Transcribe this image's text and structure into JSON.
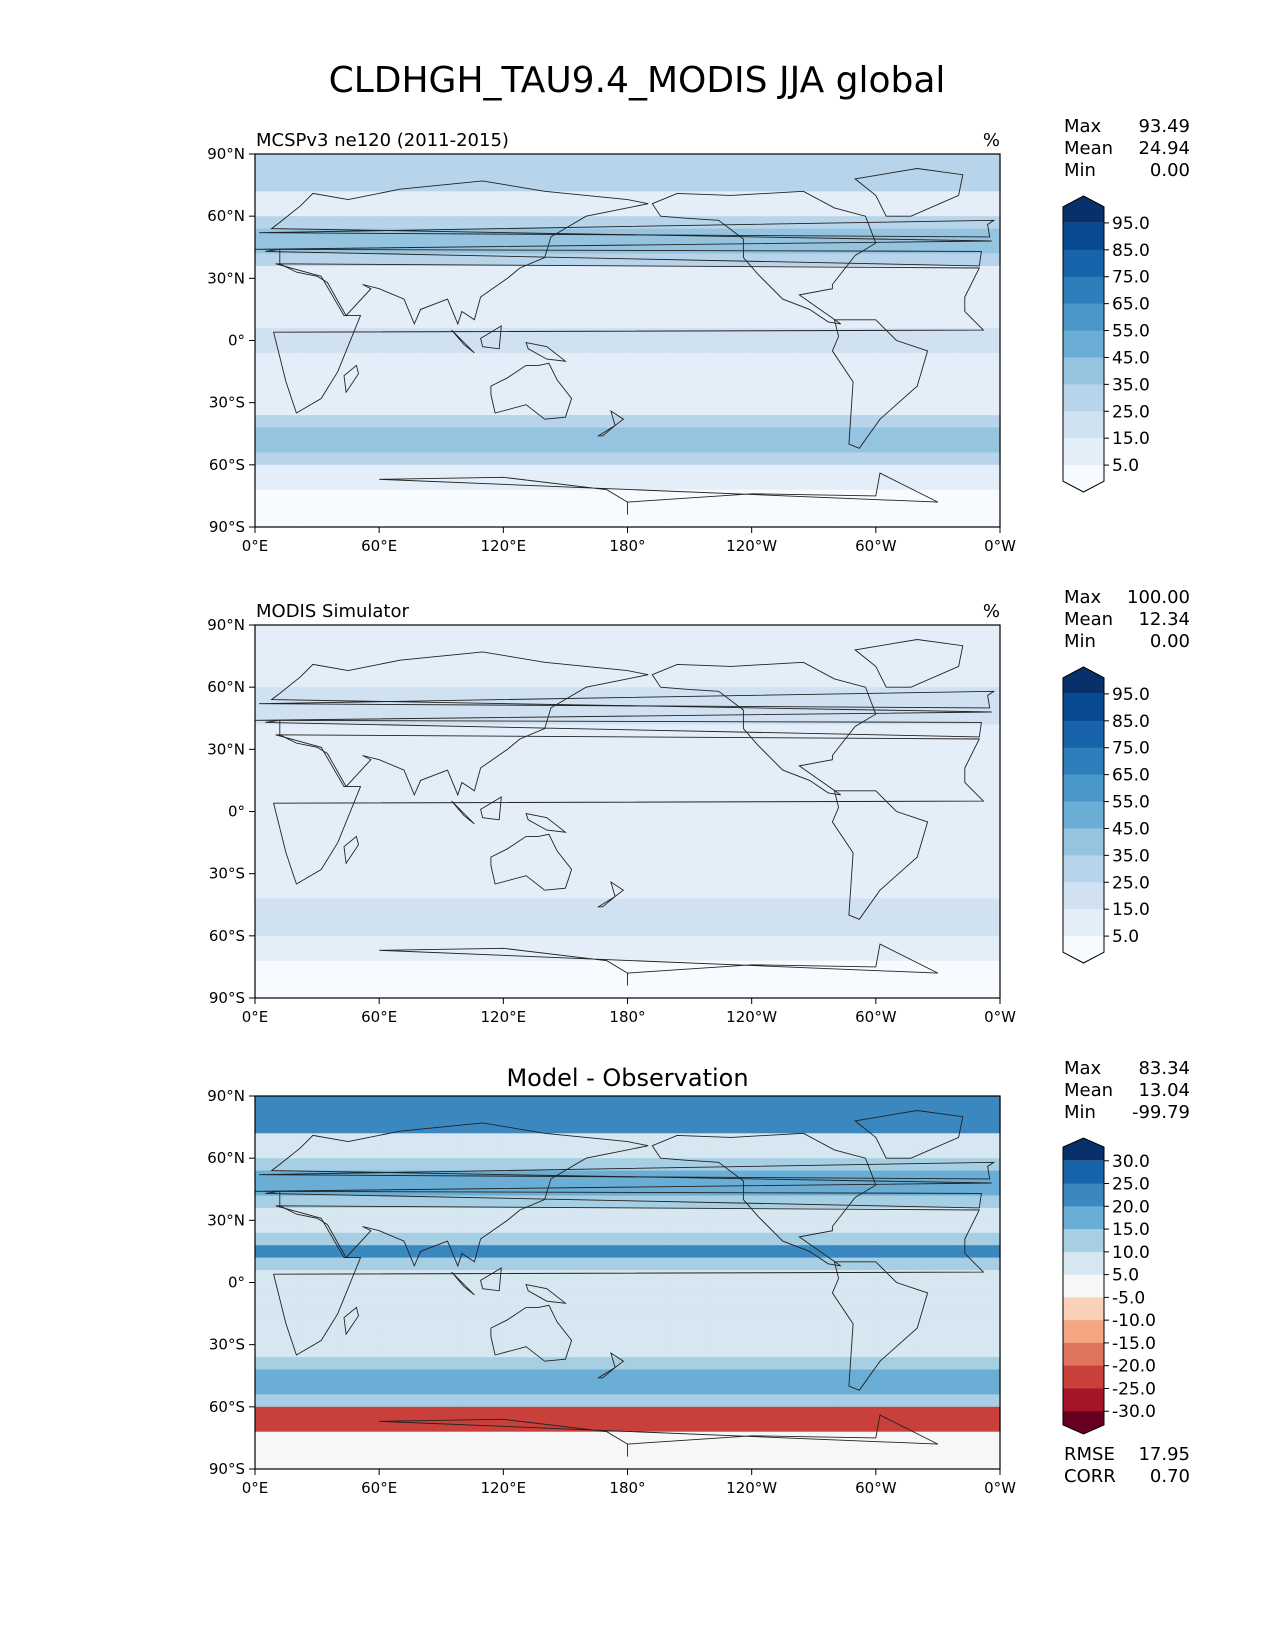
{
  "figure": {
    "title": "CLDHGH_TAU9.4_MODIS JJA global"
  },
  "chart_data": [
    {
      "type": "heatmap",
      "title": "MCSPv3 ne120 (2011-2015)",
      "units": "%",
      "stats": [
        {
          "label": "Max",
          "value": "93.49"
        },
        {
          "label": "Mean",
          "value": "24.94"
        },
        {
          "label": "Min",
          "value": "0.00"
        }
      ],
      "x_ticks": [
        "0°E",
        "60°E",
        "120°E",
        "180°",
        "120°W",
        "60°W",
        "0°W"
      ],
      "y_ticks": [
        "90°N",
        "60°N",
        "30°N",
        "0°",
        "30°S",
        "60°S",
        "90°S"
      ],
      "xlim": [
        0,
        360
      ],
      "ylim": [
        -90,
        90
      ],
      "colorbar": {
        "levels": [
          0,
          5,
          15,
          25,
          35,
          45,
          55,
          65,
          75,
          85,
          95,
          100
        ],
        "tick_labels": [
          "5.0",
          "15.0",
          "25.0",
          "35.0",
          "45.0",
          "55.0",
          "65.0",
          "75.0",
          "85.0",
          "95.0"
        ],
        "colors": [
          "#f7fbff",
          "#e3eef9",
          "#d0e1f2",
          "#b7d4ea",
          "#94c4df",
          "#6aaed6",
          "#4a98c9",
          "#2e7ebc",
          "#1764ab",
          "#084a91",
          "#08306b"
        ]
      }
    },
    {
      "type": "heatmap",
      "title": "MODIS Simulator",
      "units": "%",
      "stats": [
        {
          "label": "Max",
          "value": "100.00"
        },
        {
          "label": "Mean",
          "value": "12.34"
        },
        {
          "label": "Min",
          "value": "0.00"
        }
      ],
      "x_ticks": [
        "0°E",
        "60°E",
        "120°E",
        "180°",
        "120°W",
        "60°W",
        "0°W"
      ],
      "y_ticks": [
        "90°N",
        "60°N",
        "30°N",
        "0°",
        "30°S",
        "60°S",
        "90°S"
      ],
      "xlim": [
        0,
        360
      ],
      "ylim": [
        -90,
        90
      ],
      "colorbar": {
        "levels": [
          0,
          5,
          15,
          25,
          35,
          45,
          55,
          65,
          75,
          85,
          95,
          100
        ],
        "tick_labels": [
          "5.0",
          "15.0",
          "25.0",
          "35.0",
          "45.0",
          "55.0",
          "65.0",
          "75.0",
          "85.0",
          "95.0"
        ],
        "colors": [
          "#f7fbff",
          "#e3eef9",
          "#d0e1f2",
          "#b7d4ea",
          "#94c4df",
          "#6aaed6",
          "#4a98c9",
          "#2e7ebc",
          "#1764ab",
          "#084a91",
          "#08306b"
        ]
      }
    },
    {
      "type": "heatmap",
      "title": "Model - Observation",
      "units": "",
      "stats": [
        {
          "label": "Max",
          "value": "83.34"
        },
        {
          "label": "Mean",
          "value": "13.04"
        },
        {
          "label": "Min",
          "value": "-99.79"
        }
      ],
      "metrics": [
        {
          "label": "RMSE",
          "value": "17.95"
        },
        {
          "label": "CORR",
          "value": "0.70"
        }
      ],
      "x_ticks": [
        "0°E",
        "60°E",
        "120°E",
        "180°",
        "120°W",
        "60°W",
        "0°W"
      ],
      "y_ticks": [
        "90°N",
        "60°N",
        "30°N",
        "0°",
        "30°S",
        "60°S",
        "90°S"
      ],
      "xlim": [
        0,
        360
      ],
      "ylim": [
        -90,
        90
      ],
      "colorbar": {
        "levels": [
          -35,
          -30,
          -25,
          -20,
          -15,
          -10,
          -5,
          5,
          10,
          15,
          20,
          25,
          30,
          35
        ],
        "tick_labels": [
          "-30.0",
          "-25.0",
          "-20.0",
          "-15.0",
          "-10.0",
          "-5.0",
          "5.0",
          "10.0",
          "15.0",
          "20.0",
          "25.0",
          "30.0"
        ],
        "colors": [
          "#67001f",
          "#a51429",
          "#c9403b",
          "#e0735d",
          "#f4a582",
          "#fbd0b9",
          "#f7f7f7",
          "#d6e7f1",
          "#a7cfe4",
          "#6aaed6",
          "#3b88c1",
          "#1764ab",
          "#08306b"
        ]
      }
    }
  ]
}
